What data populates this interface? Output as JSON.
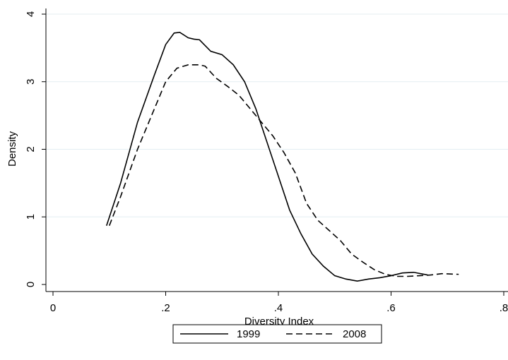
{
  "chart_data": {
    "type": "line",
    "xlabel": "Diversity Index",
    "ylabel": "Density",
    "xlim": [
      0,
      0.8
    ],
    "ylim": [
      0,
      4
    ],
    "xticks": [
      0,
      {
        "value": 0.2,
        "label": ".2"
      },
      {
        "value": 0.4,
        "label": ".4"
      },
      {
        "value": 0.6,
        "label": ".6"
      },
      {
        "value": 0.8,
        "label": ".8"
      }
    ],
    "yticks": [
      0,
      1,
      2,
      3,
      4
    ],
    "grid": true,
    "legend": "bottom",
    "series": [
      {
        "name": "1999",
        "color": "#000000",
        "dash": "solid",
        "x": [
          0.095,
          0.12,
          0.15,
          0.18,
          0.2,
          0.215,
          0.225,
          0.24,
          0.25,
          0.26,
          0.28,
          0.3,
          0.32,
          0.34,
          0.36,
          0.38,
          0.4,
          0.42,
          0.44,
          0.46,
          0.48,
          0.5,
          0.52,
          0.54,
          0.56,
          0.58,
          0.6,
          0.62,
          0.64,
          0.665
        ],
        "values": [
          0.87,
          1.5,
          2.4,
          3.1,
          3.55,
          3.72,
          3.73,
          3.65,
          3.63,
          3.62,
          3.45,
          3.4,
          3.25,
          3.0,
          2.6,
          2.1,
          1.6,
          1.1,
          0.75,
          0.45,
          0.27,
          0.13,
          0.08,
          0.05,
          0.08,
          0.1,
          0.13,
          0.17,
          0.18,
          0.14
        ]
      },
      {
        "name": "2008",
        "color": "#000000",
        "dash": "dashed",
        "x": [
          0.1,
          0.12,
          0.15,
          0.18,
          0.2,
          0.22,
          0.24,
          0.26,
          0.27,
          0.29,
          0.31,
          0.33,
          0.35,
          0.37,
          0.39,
          0.41,
          0.43,
          0.45,
          0.47,
          0.49,
          0.51,
          0.53,
          0.55,
          0.57,
          0.59,
          0.61,
          0.63,
          0.65,
          0.67,
          0.69,
          0.72
        ],
        "values": [
          0.87,
          1.3,
          2.0,
          2.6,
          3.0,
          3.2,
          3.25,
          3.25,
          3.23,
          3.05,
          2.93,
          2.8,
          2.6,
          2.4,
          2.2,
          1.95,
          1.65,
          1.2,
          0.95,
          0.8,
          0.65,
          0.45,
          0.33,
          0.22,
          0.15,
          0.12,
          0.12,
          0.13,
          0.14,
          0.16,
          0.15
        ]
      }
    ]
  }
}
